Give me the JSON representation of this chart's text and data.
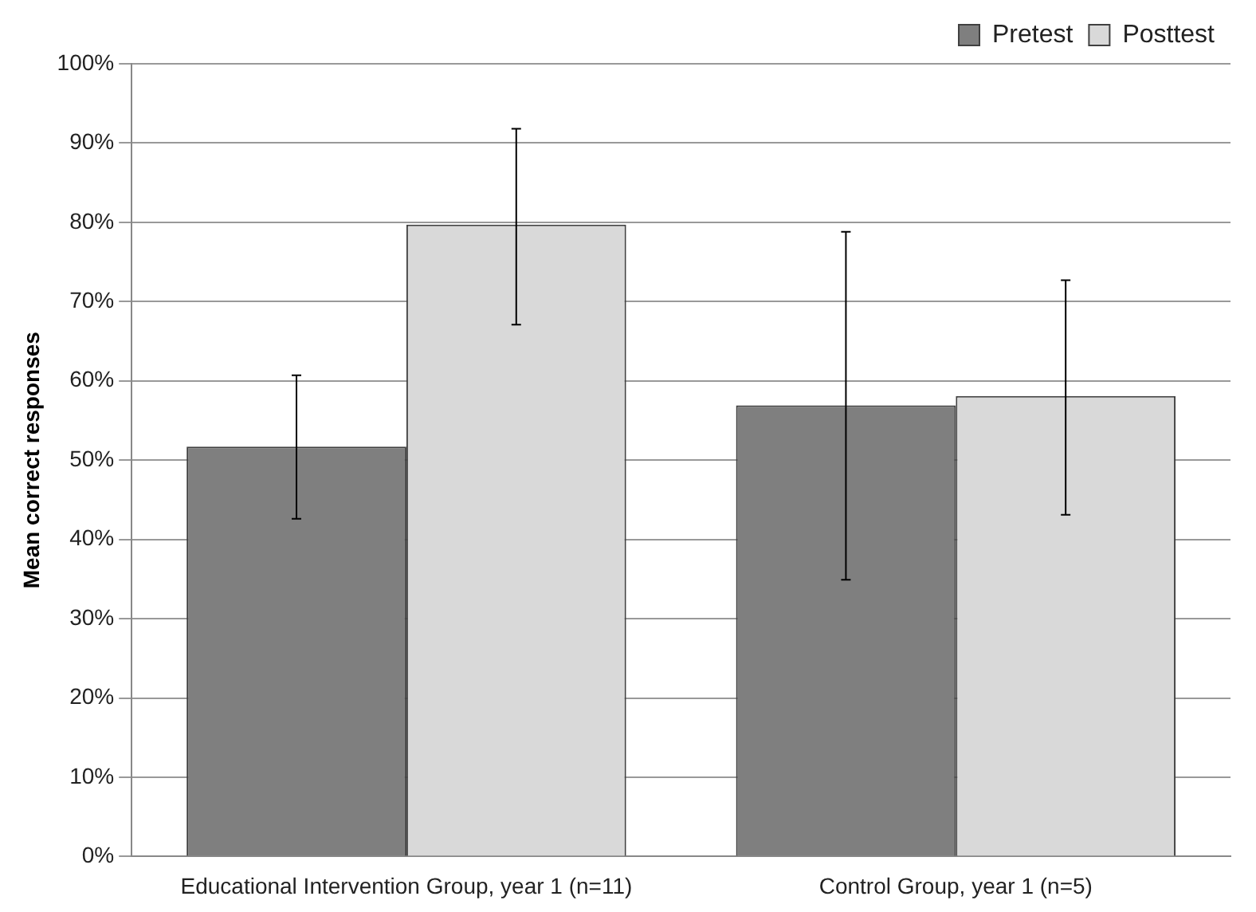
{
  "chart_data": {
    "type": "bar",
    "ylabel": "Mean correct responses",
    "categories": [
      "Educational Intervention Group, year 1 (n=11)",
      "Control Group, year 1 (n=5)"
    ],
    "series": [
      {
        "name": "Pretest",
        "color": "#7f7f7f",
        "values": [
          51.7,
          56.9
        ],
        "errors": [
          [
            42.6,
            60.7
          ],
          [
            34.9,
            78.8
          ]
        ]
      },
      {
        "name": "Posttest",
        "color": "#d9d9d9",
        "values": [
          79.7,
          58.1
        ],
        "errors": [
          [
            67.1,
            91.8
          ],
          [
            43.1,
            72.7
          ]
        ]
      }
    ],
    "ylim": [
      0,
      100
    ],
    "yticks": [
      {
        "value": 0,
        "label": "0%"
      },
      {
        "value": 10,
        "label": "10%"
      },
      {
        "value": 20,
        "label": "20%"
      },
      {
        "value": 30,
        "label": "30%"
      },
      {
        "value": 40,
        "label": "40%"
      },
      {
        "value": 50,
        "label": "50%"
      },
      {
        "value": 60,
        "label": "60%"
      },
      {
        "value": 70,
        "label": "70%"
      },
      {
        "value": 80,
        "label": "80%"
      },
      {
        "value": 90,
        "label": "90%"
      },
      {
        "value": 100,
        "label": "100%"
      }
    ],
    "grid": "y",
    "legend": "top right"
  }
}
